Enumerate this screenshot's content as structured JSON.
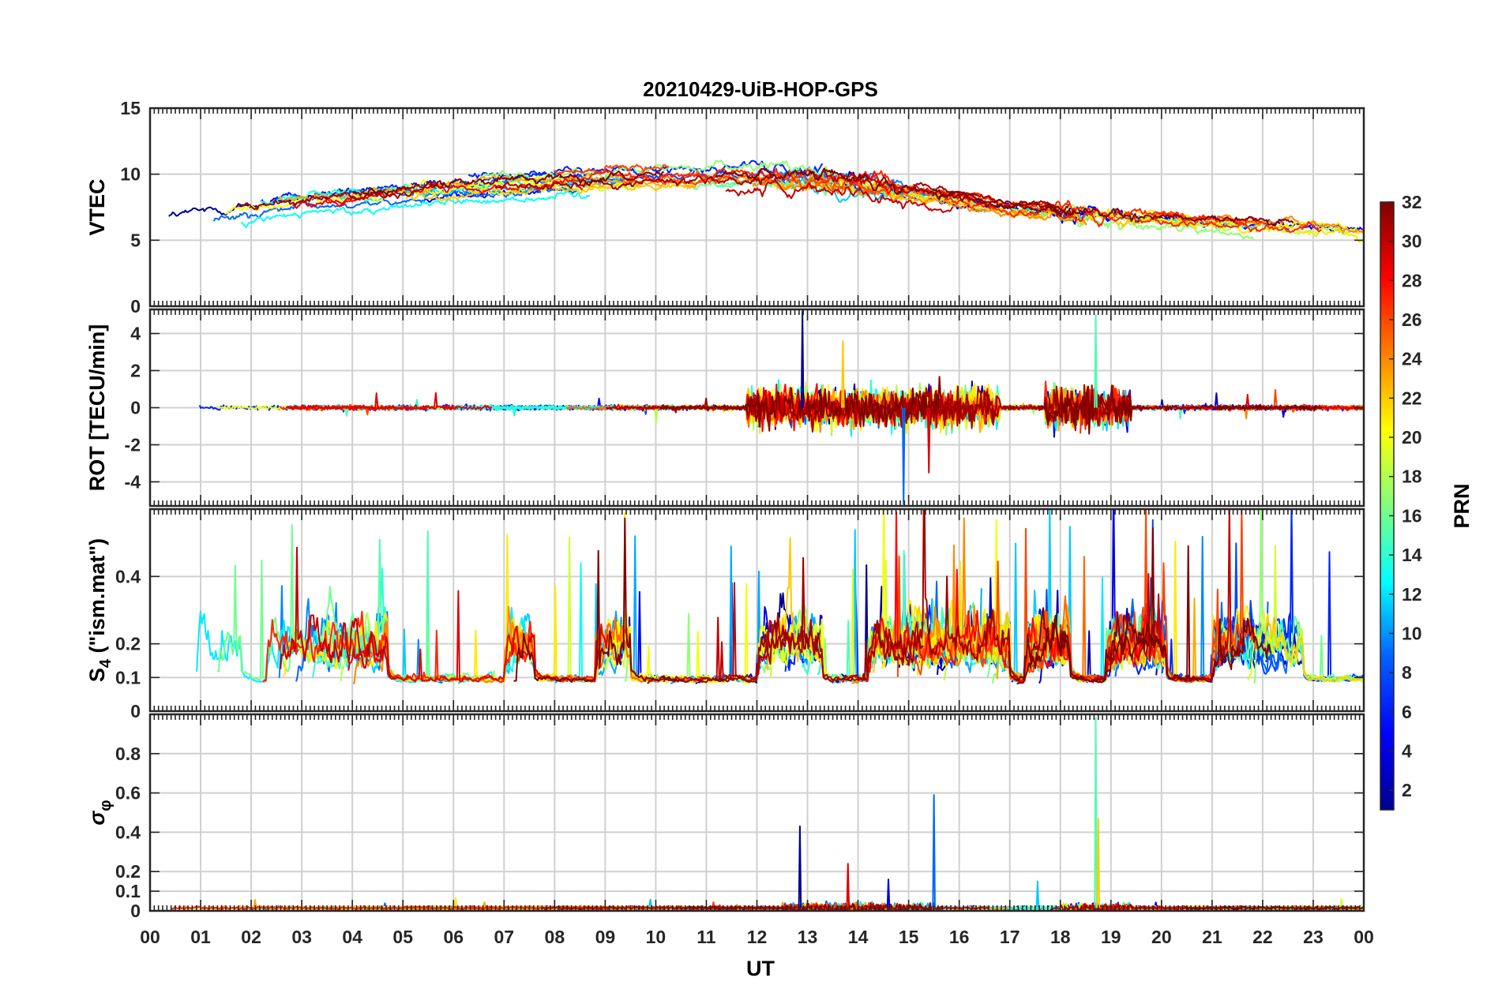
{
  "chart_data": {
    "type": "line",
    "title": "20210429-UiB-HOP-GPS",
    "xlabel": "UT",
    "x_ticks": [
      "00",
      "01",
      "02",
      "03",
      "04",
      "05",
      "06",
      "07",
      "08",
      "09",
      "10",
      "11",
      "12",
      "13",
      "14",
      "15",
      "16",
      "17",
      "18",
      "19",
      "20",
      "21",
      "22",
      "23",
      "00"
    ],
    "xlim": [
      0,
      24
    ],
    "x_units": "hours UT",
    "colorbar": {
      "label": "PRN",
      "range": [
        1,
        32
      ],
      "ticks": [
        "2",
        "4",
        "6",
        "8",
        "10",
        "12",
        "14",
        "16",
        "18",
        "20",
        "22",
        "24",
        "26",
        "28",
        "30",
        "32"
      ],
      "colormap": "jet",
      "colors": [
        "#00008f",
        "#0000ff",
        "#0080ff",
        "#00ffff",
        "#80ff80",
        "#ffff00",
        "#ff8000",
        "#ff0000",
        "#800000"
      ]
    },
    "panels": [
      {
        "id": "vtec",
        "ylabel": "VTEC",
        "ylim": [
          0,
          15
        ],
        "yticks": [
          "0",
          "5",
          "10",
          "15"
        ],
        "background": 7,
        "daily_cycle": [
          [
            0,
            6.5
          ],
          [
            3,
            8
          ],
          [
            6,
            9
          ],
          [
            9,
            9.5
          ],
          [
            12,
            9.8
          ],
          [
            14,
            9.4
          ],
          [
            17,
            7.5
          ],
          [
            19,
            7
          ],
          [
            21,
            6.4
          ],
          [
            23,
            6
          ],
          [
            24,
            5.6
          ]
        ],
        "noise": 0.5,
        "spike": 1.2,
        "disturbed_noise": 0.8,
        "disturbed_intervals": [
          [
            12,
            15
          ],
          [
            17.8,
            19.5
          ]
        ],
        "traces": 32
      },
      {
        "id": "rot",
        "ylabel": "ROT [TECU/min]",
        "ylim": [
          -5.3,
          5.3
        ],
        "yticks": [
          "-4",
          "-2",
          "0",
          "2",
          "4"
        ],
        "background": 0,
        "noise": 0.15,
        "spike": 0.8,
        "disturbed_noise": 1.3,
        "disturbed_intervals": [
          [
            11.8,
            16.8
          ],
          [
            17.7,
            19.4
          ]
        ],
        "peaks": [
          [
            12.9,
            5.2
          ],
          [
            14.9,
            -5.2
          ],
          [
            18.7,
            5.0
          ],
          [
            13.7,
            3.6
          ],
          [
            15.4,
            -3.5
          ]
        ],
        "traces": 32
      },
      {
        "id": "s4",
        "ylabel": "S4 (\"ism.mat\")",
        "ylabel_symbol": "S",
        "ylabel_subscript": "4",
        "ylabel_suffix": " (\"ism.mat\")",
        "ylim": [
          0,
          0.6
        ],
        "yticks": [
          "0",
          "0.1",
          "0.2",
          "0.4"
        ],
        "background": 0.08,
        "noise": 0.04,
        "spike": 0.45,
        "disturbed_noise": 0.12,
        "disturbed_intervals": [
          [
            0.5,
            1.8
          ],
          [
            2.3,
            4.7
          ],
          [
            7,
            7.6
          ],
          [
            8.8,
            9.5
          ],
          [
            12,
            13.3
          ],
          [
            14.2,
            17
          ],
          [
            17.3,
            18.2
          ],
          [
            18.9,
            20.1
          ],
          [
            21,
            22.8
          ]
        ],
        "traces": 32
      },
      {
        "id": "sigma_phi",
        "ylabel": "σφ",
        "ylabel_symbol": "σ",
        "ylabel_subscript": "φ",
        "ylim": [
          0,
          1
        ],
        "yticks": [
          "0",
          "0.1",
          "0.2",
          "0.4",
          "0.6",
          "0.8"
        ],
        "background": 0.015,
        "noise": 0.01,
        "spike": 0.05,
        "disturbed_noise": 0.03,
        "disturbed_intervals": [
          [
            12.5,
            15.5
          ],
          [
            18,
            19.4
          ]
        ],
        "peaks": [
          [
            12.85,
            0.43
          ],
          [
            15.5,
            0.59
          ],
          [
            18.7,
            0.98
          ],
          [
            18.75,
            0.47
          ],
          [
            13.8,
            0.24
          ],
          [
            14.6,
            0.16
          ],
          [
            17.55,
            0.15
          ]
        ],
        "traces": 32
      }
    ]
  }
}
